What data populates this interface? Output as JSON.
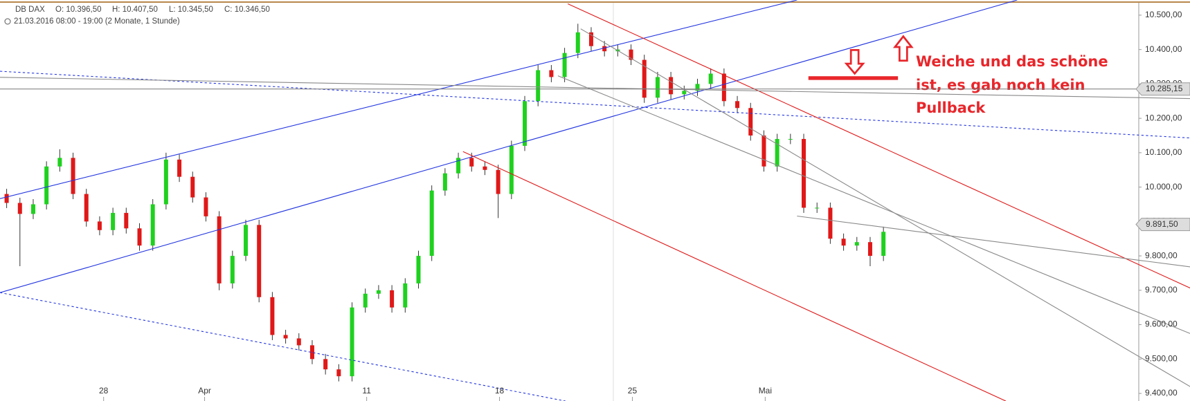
{
  "chart_data": {
    "type": "candlestick",
    "header": {
      "symbol": "DB DAX",
      "open": "O: 10.396,50",
      "high": "H: 10.407,50",
      "low": "L: 10.345,50",
      "close": "C: 10.346,50",
      "period": "21.03.2016 08:00 - 19:00 (2 Monate, 1 Stunde)"
    },
    "annotation": [
      "Weiche und das schöne",
      "ist, es gab noch kein",
      "Pullback"
    ],
    "x": [
      0.25,
      0.75,
      1.25,
      1.75,
      2.25,
      2.75,
      3.25,
      3.75,
      4.25,
      4.75,
      5.25,
      5.75,
      6.25,
      6.75,
      7.25,
      7.75,
      8.25,
      8.75,
      9.25,
      9.75,
      10.25,
      10.75,
      11.25,
      11.75,
      12.25,
      12.75,
      13.25,
      13.75,
      14.25,
      14.75,
      15.25,
      15.75,
      16.25,
      16.75,
      17.25,
      17.75,
      18.25,
      18.75,
      19.25,
      19.75,
      20.25,
      20.75,
      21.25,
      21.75,
      22.25,
      22.75,
      23.25,
      23.75,
      24.25,
      24.75,
      25.25,
      25.75,
      26.25,
      26.75,
      27.25,
      27.75,
      28.25,
      28.75,
      29.25,
      29.75,
      30.25,
      30.75,
      31.25,
      31.75,
      32.25,
      32.75,
      33.25
    ],
    "open": [
      9980,
      9954,
      9922,
      9950,
      10060,
      10085,
      9980,
      9900,
      9875,
      9925,
      9880,
      9830,
      9950,
      10080,
      10030,
      9970,
      9915,
      9720,
      9800,
      9890,
      9680,
      9570,
      9560,
      9540,
      9500,
      9470,
      9450,
      9650,
      9690,
      9700,
      9650,
      9720,
      9800,
      9990,
      10040,
      10085,
      10060,
      10050,
      9980,
      10120,
      10250,
      10340,
      10320,
      10390,
      10450,
      10410,
      10395,
      10400,
      10370,
      10260,
      10320,
      10270,
      10280,
      10300,
      10330,
      10250,
      10230,
      10150,
      10060,
      10140,
      10140,
      9940,
      9940,
      9850,
      9830,
      9840,
      9800
    ],
    "high": [
      9995,
      9969,
      9965,
      10075,
      10110,
      10100,
      9995,
      9915,
      9940,
      9940,
      9895,
      9965,
      10100,
      10095,
      10045,
      9985,
      9930,
      9815,
      9905,
      9905,
      9695,
      9585,
      9575,
      9555,
      9515,
      9485,
      9665,
      9705,
      9715,
      9715,
      9735,
      9815,
      10005,
      10055,
      10100,
      10100,
      10075,
      10065,
      10135,
      10265,
      10355,
      10355,
      10405,
      10475,
      10465,
      10425,
      10415,
      10415,
      10385,
      10335,
      10335,
      10295,
      10315,
      10345,
      10345,
      10265,
      10245,
      10165,
      10155,
      10155,
      10155,
      9955,
      9955,
      9865,
      9855,
      9855,
      9885
    ],
    "low": [
      9939,
      9770,
      9907,
      9935,
      10045,
      9965,
      9885,
      9860,
      9860,
      9865,
      9815,
      9815,
      9935,
      10015,
      9955,
      9900,
      9700,
      9705,
      9785,
      9665,
      9555,
      9545,
      9525,
      9485,
      9455,
      9435,
      9435,
      9635,
      9675,
      9635,
      9635,
      9705,
      9785,
      9975,
      10025,
      10045,
      10035,
      9910,
      9965,
      10105,
      10235,
      10305,
      10305,
      10375,
      10395,
      10380,
      10380,
      10355,
      10245,
      10245,
      10255,
      10255,
      10265,
      10285,
      10235,
      10215,
      10135,
      10045,
      10045,
      10125,
      9925,
      9925,
      9835,
      9815,
      9815,
      9770,
      9785
    ],
    "close": [
      9954,
      9922,
      9950,
      10060,
      10085,
      9980,
      9900,
      9875,
      9925,
      9880,
      9830,
      9950,
      10080,
      10030,
      9970,
      9915,
      9720,
      9800,
      9890,
      9680,
      9570,
      9560,
      9540,
      9500,
      9470,
      9450,
      9650,
      9690,
      9700,
      9650,
      9720,
      9800,
      9990,
      10040,
      10085,
      10060,
      10050,
      9980,
      10120,
      10250,
      10340,
      10320,
      10390,
      10450,
      10410,
      10395,
      10400,
      10370,
      10260,
      10320,
      10270,
      10280,
      10300,
      10330,
      10250,
      10230,
      10150,
      10060,
      10140,
      10140,
      9940,
      9940,
      9850,
      9830,
      9840,
      9800,
      9870
    ],
    "up_color": "#1fd11f",
    "down_color": "#e01818",
    "xlim": [
      0,
      42.86
    ],
    "xticks": [
      {
        "value": 3.9,
        "label": "28"
      },
      {
        "value": 7.7,
        "label": "Apr"
      },
      {
        "value": 13.8,
        "label": "11"
      },
      {
        "value": 18.8,
        "label": "18"
      },
      {
        "value": 23.8,
        "label": "25"
      },
      {
        "value": 28.8,
        "label": "Mai"
      }
    ],
    "ylim": [
      9380,
      10530
    ],
    "yticks": [
      {
        "value": 9400,
        "label": "9.400,00"
      },
      {
        "value": 9500,
        "label": "9.500,00"
      },
      {
        "value": 9600,
        "label": "9.600,00"
      },
      {
        "value": 9700,
        "label": "9.700,00"
      },
      {
        "value": 9800,
        "label": "9.800,00"
      },
      {
        "value": 9900,
        "label": "9.900,00"
      },
      {
        "value": 10000,
        "label": "10.000,00"
      },
      {
        "value": 10100,
        "label": "10.100,00"
      },
      {
        "value": 10200,
        "label": "10.200,00"
      },
      {
        "value": 10300,
        "label": "10.300,00"
      },
      {
        "value": 10400,
        "label": "10.400,00"
      },
      {
        "value": 10500,
        "label": "10.500,00"
      }
    ],
    "price_markers": [
      {
        "value": 10285.15,
        "label": "10.285,15"
      },
      {
        "value": 9891.5,
        "label": "9.891,50"
      }
    ]
  }
}
